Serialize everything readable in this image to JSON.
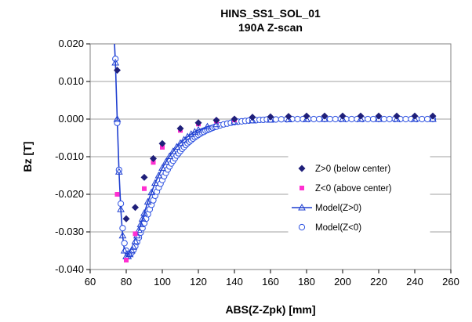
{
  "chart_data": {
    "type": "scatter",
    "title": "HINS_SS1_SOL_01",
    "subtitle": "190A Z-scan",
    "xlabel": "ABS(Z-Zpk) [mm]",
    "ylabel": "Bz [T]",
    "xlim": [
      60,
      260
    ],
    "ylim": [
      -0.04,
      0.02
    ],
    "x_ticks": [
      60,
      80,
      100,
      120,
      140,
      160,
      180,
      200,
      220,
      240,
      260
    ],
    "y_ticks": [
      0.02,
      0.01,
      0.0,
      -0.01,
      -0.02,
      -0.03,
      -0.04
    ],
    "x_tick_labels": [
      "60",
      "80",
      "100",
      "120",
      "140",
      "160",
      "180",
      "200",
      "220",
      "240",
      "260"
    ],
    "y_tick_labels": [
      "0.020",
      "0.010",
      "0.000",
      "-0.010",
      "-0.020",
      "-0.030",
      "-0.040"
    ],
    "grid": "y-major",
    "legend_position": "right-inside",
    "series": [
      {
        "name": "Z>0 (below center)",
        "marker": "diamond",
        "color": "#1f1f7a",
        "x": [
          75,
          80,
          85,
          90,
          95,
          100,
          110,
          120,
          130,
          140,
          150,
          160,
          170,
          180,
          190,
          200,
          210,
          220,
          230,
          240,
          250
        ],
        "y": [
          0.013,
          -0.0265,
          -0.0235,
          -0.0155,
          -0.0105,
          -0.0065,
          -0.0025,
          -0.001,
          -0.0003,
          0.0,
          0.0005,
          0.0006,
          0.0007,
          0.0008,
          0.0008,
          0.0008,
          0.0008,
          0.0008,
          0.0008,
          0.0008,
          0.0008
        ]
      },
      {
        "name": "Z<0 (above center)",
        "marker": "square",
        "color": "#ff2fd0",
        "x": [
          75,
          80,
          85,
          90,
          95,
          100,
          110,
          120,
          130,
          140
        ],
        "y": [
          -0.02,
          -0.0375,
          -0.0305,
          -0.0185,
          -0.0115,
          -0.0075,
          -0.003,
          -0.0013,
          -0.0005,
          -0.0002
        ]
      },
      {
        "name": "Model(Z>0)",
        "marker": "triangle",
        "line": true,
        "color": "#1f3fd0",
        "x": [
          73.5,
          74,
          75,
          76,
          77,
          78,
          79,
          80,
          81,
          82,
          83,
          84,
          85,
          86,
          87,
          88,
          89,
          90,
          92,
          94,
          96,
          98,
          100,
          102,
          104,
          106,
          108,
          110,
          112,
          114,
          116,
          118,
          120,
          125,
          130,
          140,
          150,
          160,
          170,
          180,
          190,
          200,
          210,
          220,
          230,
          240,
          250
        ],
        "y": [
          0.021,
          0.015,
          0.0,
          -0.014,
          -0.024,
          -0.031,
          -0.035,
          -0.0365,
          -0.0365,
          -0.036,
          -0.035,
          -0.034,
          -0.0325,
          -0.031,
          -0.0295,
          -0.028,
          -0.0265,
          -0.025,
          -0.022,
          -0.0195,
          -0.017,
          -0.015,
          -0.013,
          -0.0114,
          -0.0099,
          -0.0086,
          -0.0074,
          -0.0064,
          -0.0055,
          -0.0047,
          -0.004,
          -0.0034,
          -0.0029,
          -0.002,
          -0.0014,
          -0.0007,
          -0.0004,
          -0.0002,
          -0.0001,
          -5e-05,
          0.0,
          0.0,
          0.0,
          0.0,
          0.0,
          0.0,
          0.0
        ]
      },
      {
        "name": "Model(Z<0)",
        "marker": "circle-open",
        "color": "#2b4fe0",
        "x": [
          74,
          75,
          76,
          77,
          78,
          79,
          80,
          81,
          82,
          83,
          84,
          85,
          86,
          87,
          88,
          89,
          90,
          91,
          92,
          93,
          94,
          95,
          96,
          97,
          98,
          99,
          100,
          101,
          102,
          103,
          104,
          105,
          106,
          107,
          108,
          109,
          110,
          111,
          112,
          113,
          114,
          115,
          116,
          117,
          118,
          119,
          120,
          121,
          122,
          123,
          124,
          125,
          126,
          127,
          128,
          129,
          130,
          132,
          134,
          136,
          138,
          140,
          142,
          144,
          146,
          148,
          150,
          152,
          154,
          156,
          158,
          160,
          163,
          166,
          169,
          172,
          175,
          178,
          181,
          184,
          187,
          190,
          193,
          196,
          199,
          202,
          205,
          208,
          211,
          214,
          217,
          220,
          223,
          226,
          229,
          232,
          235,
          238,
          241,
          244,
          247,
          250
        ],
        "y": [
          0.016,
          -0.001,
          -0.0135,
          -0.0225,
          -0.029,
          -0.033,
          -0.035,
          -0.0358,
          -0.0358,
          -0.0355,
          -0.0348,
          -0.0338,
          -0.0327,
          -0.0315,
          -0.0302,
          -0.029,
          -0.0277,
          -0.0265,
          -0.0253,
          -0.024,
          -0.0228,
          -0.0216,
          -0.0204,
          -0.0193,
          -0.0182,
          -0.0172,
          -0.0162,
          -0.0152,
          -0.0143,
          -0.0134,
          -0.0126,
          -0.0118,
          -0.0111,
          -0.0104,
          -0.0097,
          -0.0091,
          -0.0085,
          -0.0079,
          -0.0074,
          -0.0069,
          -0.0064,
          -0.006,
          -0.0056,
          -0.0052,
          -0.0048,
          -0.0045,
          -0.0042,
          -0.0039,
          -0.0036,
          -0.0034,
          -0.0031,
          -0.0029,
          -0.0027,
          -0.0025,
          -0.0023,
          -0.0021,
          -0.002,
          -0.0017,
          -0.0014,
          -0.0012,
          -0.001,
          -0.0008,
          -0.0007,
          -0.0006,
          -0.0005,
          -0.0004,
          -0.0003,
          -0.0003,
          -0.0002,
          -0.0002,
          -0.0001,
          -0.0001,
          -0.0001,
          -5e-05,
          -5e-05,
          0.0,
          0.0,
          0.0,
          0.0,
          0.0,
          0.0,
          0.0,
          0.0,
          0.0,
          0.0,
          0.0,
          0.0,
          0.0,
          0.0,
          0.0,
          0.0,
          0.0,
          0.0,
          0.0,
          0.0,
          0.0,
          0.0,
          0.0,
          0.0,
          0.0,
          0.0,
          0.0
        ]
      }
    ]
  }
}
